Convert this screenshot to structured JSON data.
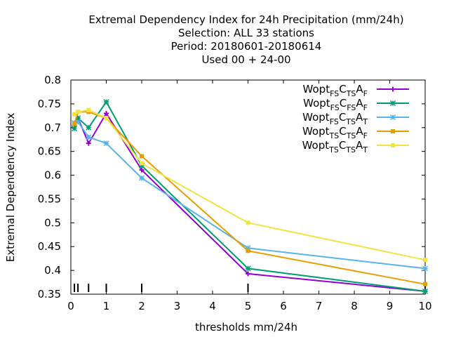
{
  "chart_data": {
    "type": "line",
    "title": [
      "Extremal Dependency Index  for 24h Precipitation (mm/24h)",
      "Selection: ALL     33 stations",
      "Period: 20180601-20180614",
      "Used  00 + 24-00"
    ],
    "xlabel": "thresholds mm/24h",
    "ylabel": "Extremal Dependency Index",
    "xlim": [
      0,
      10
    ],
    "ylim": [
      0.35,
      0.8
    ],
    "xticks": [
      0,
      1,
      2,
      3,
      4,
      5,
      6,
      7,
      8,
      9,
      10
    ],
    "yticks": [
      0.35,
      0.4,
      0.45,
      0.5,
      0.55,
      0.6,
      0.65,
      0.7,
      0.75,
      0.8
    ],
    "xtick_labels": [
      "0",
      "1",
      "2",
      "3",
      "4",
      "5",
      "6",
      "7",
      "8",
      "9",
      "10"
    ],
    "ytick_labels": [
      "0.35",
      "0.4",
      "0.45",
      "0.5",
      "0.55",
      "0.6",
      "0.65",
      "0.7",
      "0.75",
      "0.8"
    ],
    "threshold_marks": [
      0.1,
      0.2,
      0.5,
      1,
      2,
      5,
      10
    ],
    "legend_position": "top-right",
    "x": [
      0.1,
      0.2,
      0.5,
      1,
      2,
      5,
      10
    ],
    "series": [
      {
        "name": "FS_CTS_AF",
        "label": {
          "base": "Wopt",
          "s1": "FS",
          "c": "C",
          "s2": "TS",
          "a": "A",
          "s3": "F"
        },
        "color": "#9400d3",
        "marker": "plus",
        "values": [
          0.705,
          0.72,
          0.667,
          0.73,
          0.611,
          0.393,
          0.356
        ]
      },
      {
        "name": "FS_CFS_AF",
        "label": {
          "base": "Wopt",
          "s1": "FS",
          "c": "C",
          "s2": "FS",
          "a": "A",
          "s3": "F"
        },
        "color": "#009e73",
        "marker": "x",
        "values": [
          0.698,
          0.72,
          0.7,
          0.754,
          0.62,
          0.404,
          0.356
        ]
      },
      {
        "name": "FS_CTS_AT",
        "label": {
          "base": "Wopt",
          "s1": "FS",
          "c": "C",
          "s2": "TS",
          "a": "A",
          "s3": "T"
        },
        "color": "#56b4e9",
        "marker": "star",
        "values": [
          0.71,
          0.712,
          0.68,
          0.667,
          0.594,
          0.447,
          0.404
        ]
      },
      {
        "name": "TS_CTS_AF",
        "label": {
          "base": "Wopt",
          "s1": "TS",
          "c": "C",
          "s2": "TS",
          "a": "A",
          "s3": "F"
        },
        "color": "#e69f00",
        "marker": "box",
        "values": [
          0.708,
          0.733,
          0.733,
          0.72,
          0.64,
          0.441,
          0.371
        ]
      },
      {
        "name": "TS_CTS_AT",
        "label": {
          "base": "Wopt",
          "s1": "TS",
          "c": "C",
          "s2": "TS",
          "a": "A",
          "s3": "T"
        },
        "color": "#f0e442",
        "marker": "box",
        "values": [
          0.728,
          0.733,
          0.737,
          0.72,
          0.625,
          0.5,
          0.422
        ]
      }
    ]
  }
}
